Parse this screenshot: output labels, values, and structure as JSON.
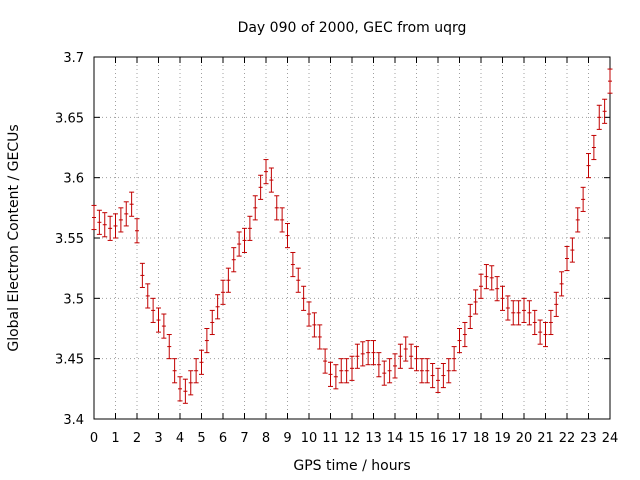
{
  "chart_data": {
    "type": "scatter",
    "title": "Day 090 of 2000, GEC from uqrg",
    "xlabel": "GPS time / hours",
    "ylabel": "Global Electron Content / GECUs",
    "xlim": [
      0,
      24
    ],
    "ylim": [
      3.4,
      3.7
    ],
    "xticks": [
      0,
      1,
      2,
      3,
      4,
      5,
      6,
      7,
      8,
      9,
      10,
      11,
      12,
      13,
      14,
      15,
      16,
      17,
      18,
      19,
      20,
      21,
      22,
      23,
      24
    ],
    "yticks": [
      3.4,
      3.45,
      3.5,
      3.55,
      3.6,
      3.65,
      3.7
    ],
    "ytick_labels": [
      "3.4",
      "3.45",
      "3.5",
      "3.55",
      "3.6",
      "3.65",
      "3.7"
    ],
    "grid": true,
    "error_bar_color": "#c00000",
    "series": [
      {
        "x": [
          0,
          0.25,
          0.5,
          0.75,
          1,
          1.25,
          1.5,
          1.75,
          2,
          2.25,
          2.5,
          2.75,
          3,
          3.25,
          3.5,
          3.75,
          4,
          4.25,
          4.5,
          4.75,
          5,
          5.25,
          5.5,
          5.75,
          6,
          6.25,
          6.5,
          6.75,
          7,
          7.25,
          7.5,
          7.75,
          8,
          8.25,
          8.5,
          8.75,
          9,
          9.25,
          9.5,
          9.75,
          10,
          10.25,
          10.5,
          10.75,
          11,
          11.25,
          11.5,
          11.75,
          12,
          12.25,
          12.5,
          12.75,
          13,
          13.25,
          13.5,
          13.75,
          14,
          14.25,
          14.5,
          14.75,
          15,
          15.25,
          15.5,
          15.75,
          16,
          16.25,
          16.5,
          16.75,
          17,
          17.25,
          17.5,
          17.75,
          18,
          18.25,
          18.5,
          18.75,
          19,
          19.25,
          19.5,
          19.75,
          20,
          20.25,
          20.5,
          20.75,
          21,
          21.25,
          21.5,
          21.75,
          22,
          22.25,
          22.5,
          22.75,
          23,
          23.25,
          23.5,
          23.75,
          24
        ],
        "y": [
          3.567,
          3.563,
          3.561,
          3.558,
          3.56,
          3.565,
          3.57,
          3.578,
          3.556,
          3.519,
          3.502,
          3.49,
          3.482,
          3.477,
          3.46,
          3.44,
          3.425,
          3.423,
          3.43,
          3.44,
          3.447,
          3.465,
          3.48,
          3.493,
          3.505,
          3.515,
          3.532,
          3.545,
          3.548,
          3.558,
          3.575,
          3.592,
          3.605,
          3.598,
          3.575,
          3.565,
          3.552,
          3.528,
          3.515,
          3.5,
          3.487,
          3.478,
          3.468,
          3.448,
          3.437,
          3.435,
          3.44,
          3.44,
          3.442,
          3.452,
          3.454,
          3.455,
          3.455,
          3.445,
          3.438,
          3.44,
          3.444,
          3.452,
          3.458,
          3.452,
          3.45,
          3.44,
          3.44,
          3.436,
          3.432,
          3.436,
          3.44,
          3.45,
          3.465,
          3.47,
          3.485,
          3.497,
          3.51,
          3.518,
          3.517,
          3.508,
          3.5,
          3.492,
          3.488,
          3.488,
          3.49,
          3.488,
          3.48,
          3.472,
          3.47,
          3.48,
          3.495,
          3.512,
          3.533,
          3.54,
          3.565,
          3.582,
          3.61,
          3.625,
          3.65,
          3.655,
          3.68
        ],
        "err": [
          0.01,
          0.01,
          0.01,
          0.01,
          0.01,
          0.01,
          0.01,
          0.01,
          0.01,
          0.01,
          0.01,
          0.01,
          0.01,
          0.01,
          0.01,
          0.01,
          0.01,
          0.01,
          0.01,
          0.01,
          0.01,
          0.01,
          0.01,
          0.01,
          0.01,
          0.01,
          0.01,
          0.01,
          0.01,
          0.01,
          0.01,
          0.01,
          0.01,
          0.01,
          0.01,
          0.01,
          0.01,
          0.01,
          0.01,
          0.01,
          0.01,
          0.01,
          0.01,
          0.01,
          0.01,
          0.01,
          0.01,
          0.01,
          0.01,
          0.01,
          0.01,
          0.01,
          0.01,
          0.01,
          0.01,
          0.01,
          0.01,
          0.01,
          0.01,
          0.01,
          0.01,
          0.01,
          0.01,
          0.01,
          0.01,
          0.01,
          0.01,
          0.01,
          0.01,
          0.01,
          0.01,
          0.01,
          0.01,
          0.01,
          0.01,
          0.01,
          0.01,
          0.01,
          0.01,
          0.01,
          0.01,
          0.01,
          0.01,
          0.01,
          0.01,
          0.01,
          0.01,
          0.01,
          0.01,
          0.01,
          0.01,
          0.01,
          0.01,
          0.01,
          0.01,
          0.01,
          0.01
        ]
      }
    ]
  }
}
